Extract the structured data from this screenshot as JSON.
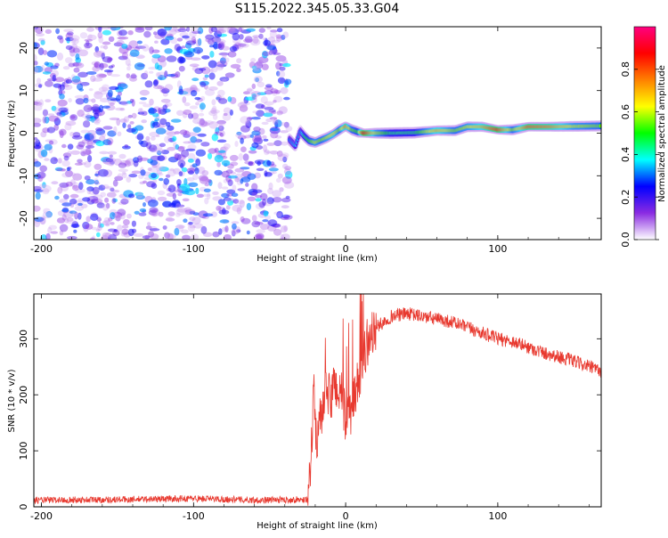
{
  "figure": {
    "title": "S115.2022.345.05.33.G04"
  },
  "chart_data": [
    {
      "type": "heatmap",
      "xlabel": "Height of straight line (km)",
      "ylabel": "Frequency (Hz)",
      "xlim": [
        -205,
        168
      ],
      "ylim": [
        -25,
        25
      ],
      "xticks": [
        -200,
        -100,
        0,
        100
      ],
      "yticks": [
        -20,
        -10,
        0,
        10,
        20
      ],
      "colorbar": {
        "label": "Normalized spectral amplitude",
        "range": [
          0,
          1
        ],
        "ticks": [
          "0.0",
          "0.2",
          "0.4",
          "0.6",
          "0.8"
        ],
        "colormap": "gist_rainbow_r",
        "colors": [
          "#ffffff",
          "#8a2be2",
          "#0000ff",
          "#00ffff",
          "#00ff00",
          "#ffff00",
          "#ff8000",
          "#ff0000",
          "#ff0080"
        ]
      },
      "noise_region_x": [
        -205,
        -37
      ],
      "ridge_points": [
        {
          "x": -37,
          "y": -1.5,
          "amp": 0.3
        },
        {
          "x": -33,
          "y": -3.0,
          "amp": 0.35
        },
        {
          "x": -30,
          "y": 0.5,
          "amp": 0.3
        },
        {
          "x": -27,
          "y": -0.8,
          "amp": 0.45
        },
        {
          "x": -24,
          "y": -1.8,
          "amp": 0.5
        },
        {
          "x": -20,
          "y": -2.2,
          "amp": 0.6
        },
        {
          "x": -16,
          "y": -1.6,
          "amp": 0.55
        },
        {
          "x": -12,
          "y": -1.0,
          "amp": 0.6
        },
        {
          "x": -8,
          "y": -0.2,
          "amp": 0.65
        },
        {
          "x": -4,
          "y": 0.8,
          "amp": 0.55
        },
        {
          "x": 0,
          "y": 1.6,
          "amp": 0.75
        },
        {
          "x": 4,
          "y": 0.8,
          "amp": 0.55
        },
        {
          "x": 8,
          "y": 0.3,
          "amp": 0.5
        },
        {
          "x": 12,
          "y": 0.0,
          "amp": 0.9
        },
        {
          "x": 20,
          "y": 0.0,
          "amp": 0.6
        },
        {
          "x": 30,
          "y": 0.0,
          "amp": 0.45
        },
        {
          "x": 45,
          "y": 0.1,
          "amp": 0.45
        },
        {
          "x": 60,
          "y": 0.6,
          "amp": 0.7
        },
        {
          "x": 72,
          "y": 0.6,
          "amp": 0.55
        },
        {
          "x": 80,
          "y": 1.5,
          "amp": 0.6
        },
        {
          "x": 90,
          "y": 1.5,
          "amp": 0.7
        },
        {
          "x": 100,
          "y": 0.8,
          "amp": 0.85
        },
        {
          "x": 110,
          "y": 0.8,
          "amp": 0.55
        },
        {
          "x": 120,
          "y": 1.5,
          "amp": 0.8
        },
        {
          "x": 135,
          "y": 1.5,
          "amp": 0.75
        },
        {
          "x": 150,
          "y": 1.6,
          "amp": 0.6
        },
        {
          "x": 168,
          "y": 1.7,
          "amp": 0.55
        }
      ]
    },
    {
      "type": "line",
      "xlabel": "Height of straight line (km)",
      "ylabel": "SNR (10 * v/v)",
      "xlim": [
        -205,
        168
      ],
      "ylim": [
        0,
        380
      ],
      "xticks": [
        -200,
        -100,
        0,
        100
      ],
      "yticks": [
        0,
        100,
        200,
        300
      ],
      "color": "#e8392f",
      "envelope": {
        "x": [
          -205,
          -150,
          -100,
          -60,
          -25,
          -23,
          -21,
          -19,
          -17,
          -15,
          -12,
          -10,
          -7,
          -5,
          -3,
          0,
          5,
          10,
          15,
          20,
          25,
          30,
          40,
          50,
          60,
          70,
          80,
          90,
          100,
          110,
          120,
          130,
          140,
          150,
          160,
          168
        ],
        "y": [
          12,
          13,
          15,
          12,
          13,
          60,
          200,
          120,
          150,
          170,
          210,
          190,
          225,
          200,
          210,
          150,
          180,
          250,
          300,
          320,
          330,
          340,
          345,
          340,
          335,
          330,
          320,
          310,
          300,
          295,
          285,
          275,
          268,
          260,
          250,
          242
        ]
      }
    }
  ]
}
